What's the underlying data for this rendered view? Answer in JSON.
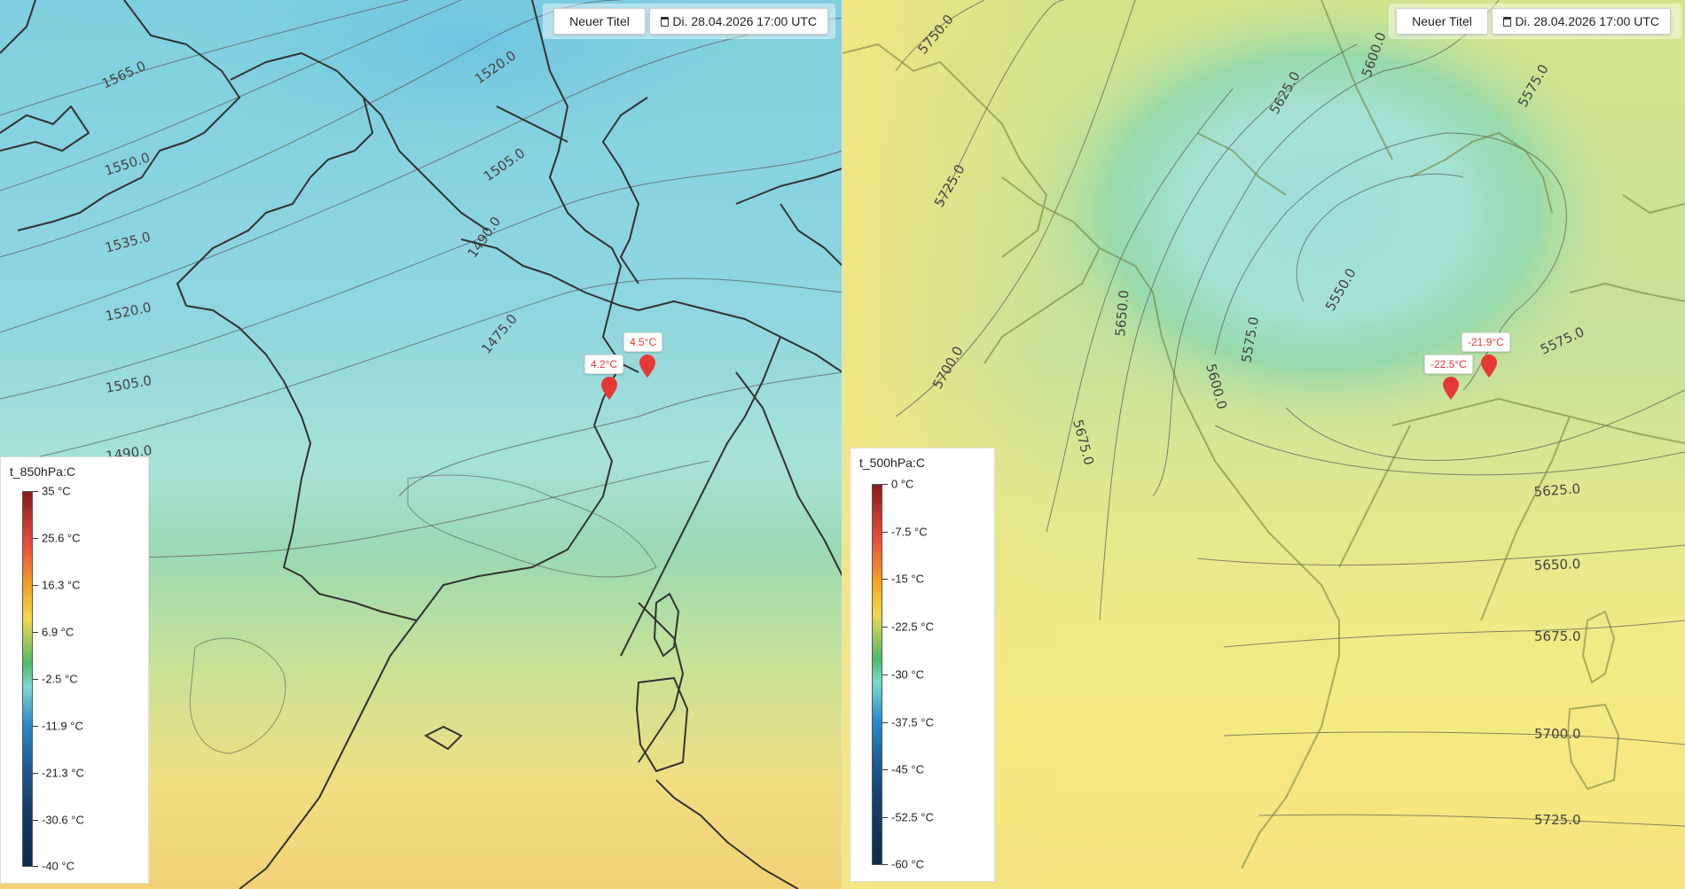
{
  "panels": [
    {
      "title_button": "Neuer Titel",
      "date_button": "Di. 28.04.2026 17:00 UTC",
      "legend": {
        "title": "t_850hPa:C",
        "labels": [
          "35 °C",
          "25.6 °C",
          "16.3 °C",
          "6.9 °C",
          "-2.5 °C",
          "-11.9 °C",
          "-21.3 °C",
          "-30.6 °C",
          "-40 °C"
        ]
      },
      "markers": [
        "4.2°C",
        "4.5°C"
      ],
      "isolines": [
        "1565.0",
        "1550.0",
        "1535.0",
        "1520.0",
        "1505.0",
        "1490.0",
        "1520.0",
        "1505.0",
        "1490.0",
        "1475.0"
      ]
    },
    {
      "title_button": "Neuer Titel",
      "date_button": "Di. 28.04.2026 17:00 UTC",
      "legend": {
        "title": "t_500hPa:C",
        "labels": [
          "0 °C",
          "-7.5 °C",
          "-15 °C",
          "-22.5 °C",
          "-30 °C",
          "-37.5 °C",
          "-45 °C",
          "-52.5 °C",
          "-60 °C"
        ]
      },
      "markers": [
        "-22.5°C",
        "-21.9°C"
      ],
      "isolines": [
        "5750.0",
        "5725.0",
        "5700.0",
        "5675.0",
        "5650.0",
        "5625.0",
        "5600.0",
        "5575.0",
        "5550.0",
        "5600.0",
        "5575.0",
        "5575.0",
        "5625.0",
        "5650.0",
        "5675.0",
        "5700.0",
        "5725.0"
      ]
    }
  ],
  "colors": {
    "marker": "#e53935",
    "legend_gradient_top": "#8b1a1a",
    "legend_gradient_bottom": "#0b2a4a"
  },
  "icons": {
    "date_button": "calendar-icon",
    "marker": "map-pin-icon"
  }
}
